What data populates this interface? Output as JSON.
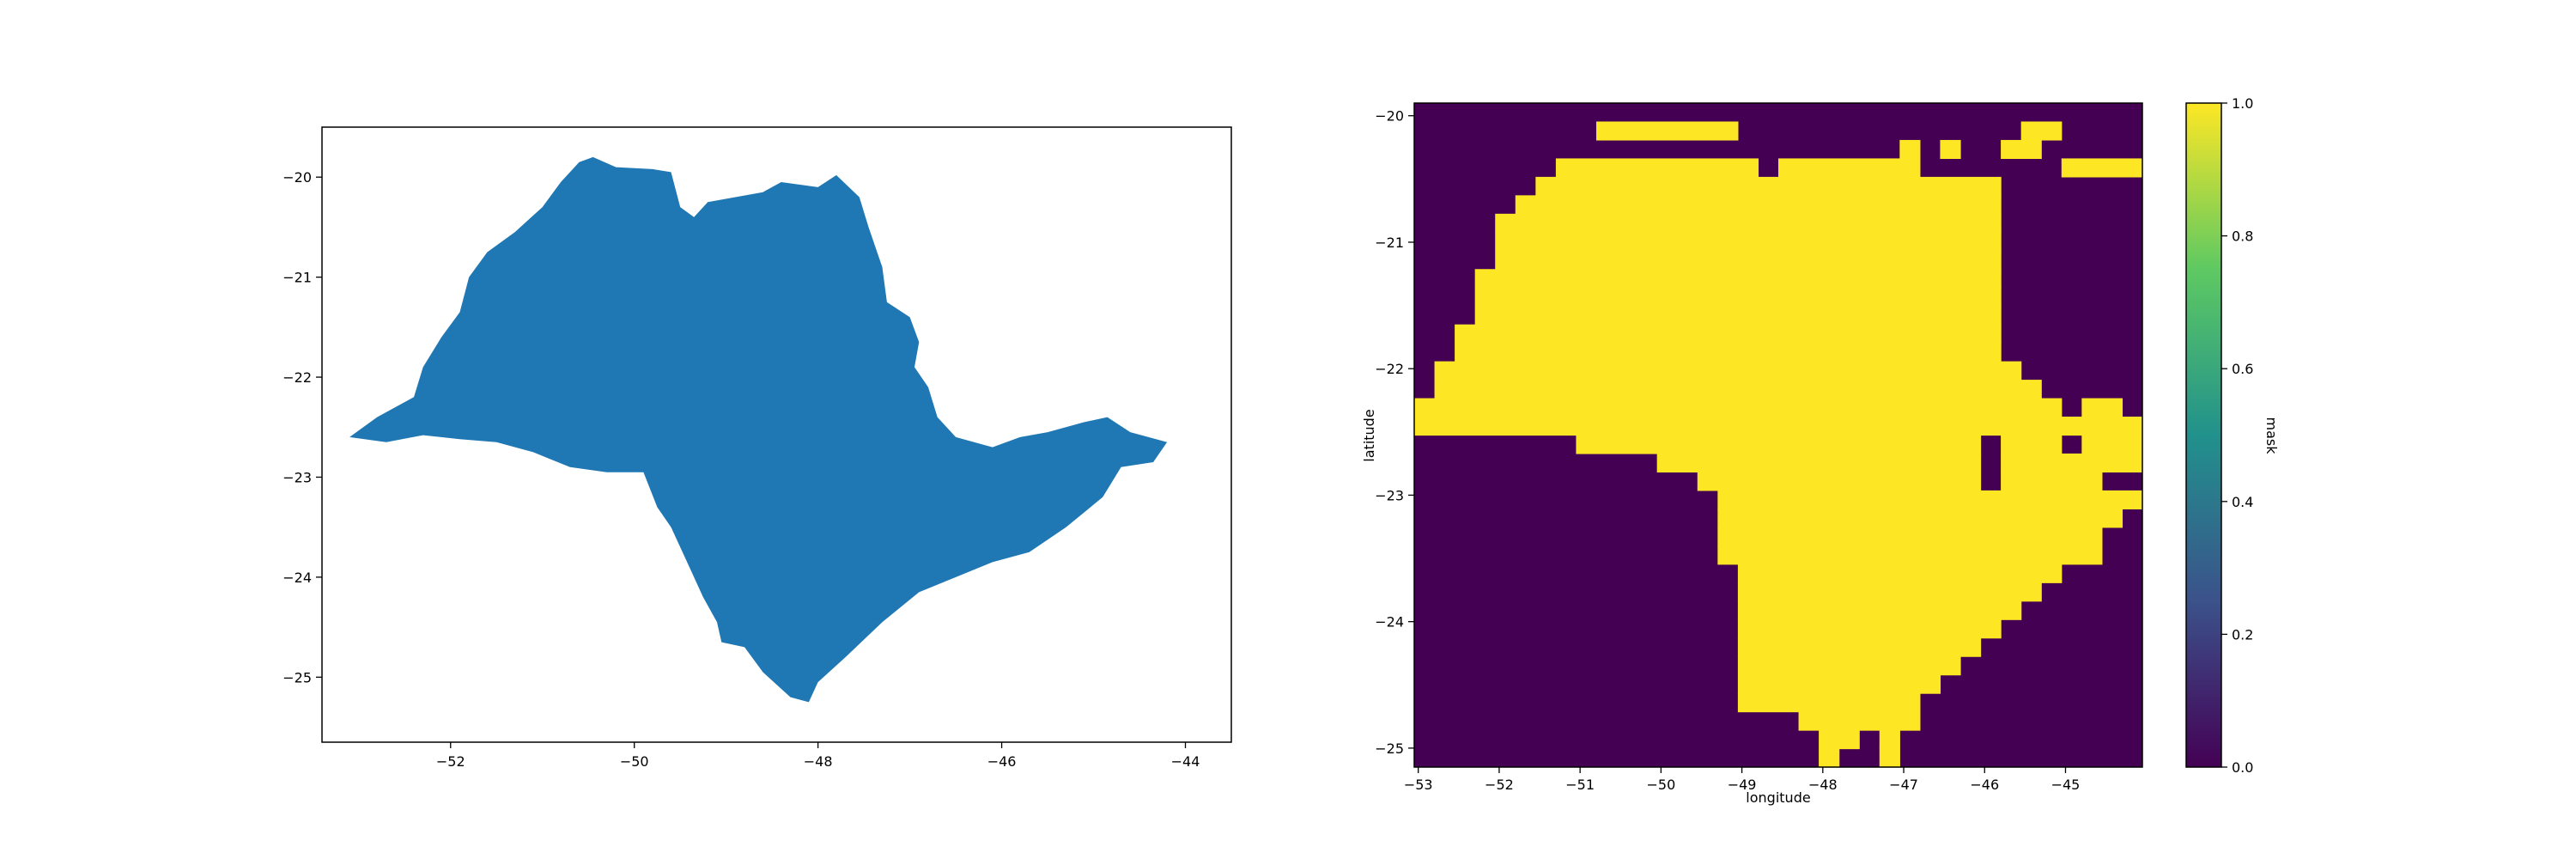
{
  "chart_data": [
    {
      "type": "map",
      "title": "",
      "xlabel": "",
      "ylabel": "",
      "xlim": [
        -53.4,
        -43.5
      ],
      "ylim": [
        -25.65,
        -19.5
      ],
      "xticks": [
        -52,
        -50,
        -48,
        -46,
        -44
      ],
      "yticks": [
        -20,
        -21,
        -22,
        -23,
        -24,
        -25
      ],
      "fill_color": "#1f77b4",
      "outline": [
        [
          -53.1,
          -22.6
        ],
        [
          -52.8,
          -22.4
        ],
        [
          -52.4,
          -22.2
        ],
        [
          -52.3,
          -21.9
        ],
        [
          -52.1,
          -21.6
        ],
        [
          -51.9,
          -21.35
        ],
        [
          -51.8,
          -21.0
        ],
        [
          -51.6,
          -20.75
        ],
        [
          -51.3,
          -20.55
        ],
        [
          -51.0,
          -20.3
        ],
        [
          -50.8,
          -20.05
        ],
        [
          -50.6,
          -19.85
        ],
        [
          -50.45,
          -19.8
        ],
        [
          -50.2,
          -19.9
        ],
        [
          -49.8,
          -19.92
        ],
        [
          -49.6,
          -19.95
        ],
        [
          -49.5,
          -20.3
        ],
        [
          -49.35,
          -20.4
        ],
        [
          -49.2,
          -20.25
        ],
        [
          -48.9,
          -20.2
        ],
        [
          -48.6,
          -20.15
        ],
        [
          -48.4,
          -20.05
        ],
        [
          -48.0,
          -20.1
        ],
        [
          -47.8,
          -19.98
        ],
        [
          -47.55,
          -20.2
        ],
        [
          -47.45,
          -20.5
        ],
        [
          -47.3,
          -20.9
        ],
        [
          -47.25,
          -21.25
        ],
        [
          -47.0,
          -21.4
        ],
        [
          -46.9,
          -21.65
        ],
        [
          -46.95,
          -21.9
        ],
        [
          -46.8,
          -22.1
        ],
        [
          -46.7,
          -22.4
        ],
        [
          -46.5,
          -22.6
        ],
        [
          -46.1,
          -22.7
        ],
        [
          -45.8,
          -22.6
        ],
        [
          -45.5,
          -22.55
        ],
        [
          -45.1,
          -22.45
        ],
        [
          -44.85,
          -22.4
        ],
        [
          -44.6,
          -22.55
        ],
        [
          -44.2,
          -22.65
        ],
        [
          -44.35,
          -22.85
        ],
        [
          -44.7,
          -22.9
        ],
        [
          -44.9,
          -23.2
        ],
        [
          -45.3,
          -23.5
        ],
        [
          -45.7,
          -23.75
        ],
        [
          -46.1,
          -23.85
        ],
        [
          -46.5,
          -24.0
        ],
        [
          -46.9,
          -24.15
        ],
        [
          -47.3,
          -24.45
        ],
        [
          -47.7,
          -24.8
        ],
        [
          -48.0,
          -25.05
        ],
        [
          -48.1,
          -25.25
        ],
        [
          -48.3,
          -25.2
        ],
        [
          -48.6,
          -24.95
        ],
        [
          -48.8,
          -24.7
        ],
        [
          -49.05,
          -24.65
        ],
        [
          -49.1,
          -24.45
        ],
        [
          -49.25,
          -24.2
        ],
        [
          -49.4,
          -23.9
        ],
        [
          -49.6,
          -23.5
        ],
        [
          -49.75,
          -23.3
        ],
        [
          -49.9,
          -22.95
        ],
        [
          -50.3,
          -22.95
        ],
        [
          -50.7,
          -22.9
        ],
        [
          -51.1,
          -22.75
        ],
        [
          -51.5,
          -22.65
        ],
        [
          -51.9,
          -22.62
        ],
        [
          -52.3,
          -22.58
        ],
        [
          -52.7,
          -22.65
        ],
        [
          -53.1,
          -22.6
        ]
      ]
    },
    {
      "type": "heatmap",
      "title": "",
      "xlabel": "longitude",
      "ylabel": "latitude",
      "colorbar_label": "mask",
      "colormap": "viridis",
      "low_color": "#440154",
      "high_color": "#fde725",
      "colorbar_stops": [
        "#440154",
        "#3b528b",
        "#21918c",
        "#5ec962",
        "#fde725"
      ],
      "xlim": [
        -53.05,
        -44.05
      ],
      "ylim": [
        -25.15,
        -19.9
      ],
      "xticks": [
        -53,
        -52,
        -51,
        -50,
        -49,
        -48,
        -47,
        -46,
        -45
      ],
      "yticks": [
        -20,
        -21,
        -22,
        -23,
        -24,
        -25
      ],
      "colorbar_ticks": [
        0.0,
        0.2,
        0.4,
        0.6,
        0.8,
        1.0
      ],
      "colorbar_tick_labels": [
        "0.0",
        "0.2",
        "0.4",
        "0.6",
        "0.8",
        "1.0"
      ],
      "vmin": 0.0,
      "vmax": 1.0,
      "cell_size_deg": 0.25,
      "mask_rows": [
        "....................................",
        ".........#######..............##.....",
        "........................#.#..##.....",
        ".......##########.#######.......####",
        "......#######################.......",
        ".....########################.......",
        "....#########################.......",
        "....#########################.......",
        "....#########################.......",
        "...##########################.......",
        "...##########################.......",
        "...##########################.......",
        "..###########################.......",
        "..###########################.......",
        ".#############################......",
        ".##############################......",
        "################################.##.",
        "####################################",
        "........####################.###.###",
        "............################.#######",
        "..............##############.#####..",
        "...............#####################",
        "...............####################.",
        "...............###################..",
        "...............###################..",
        "................################....",
        "................###############.....",
        "................##############......",
        "................#############.......",
        "................############........",
        "................###########.........",
        "................##########..........",
        "................#########...........",
        "...................######...........",
        "....................##.#............",
        "....................#..#............"
      ]
    }
  ]
}
